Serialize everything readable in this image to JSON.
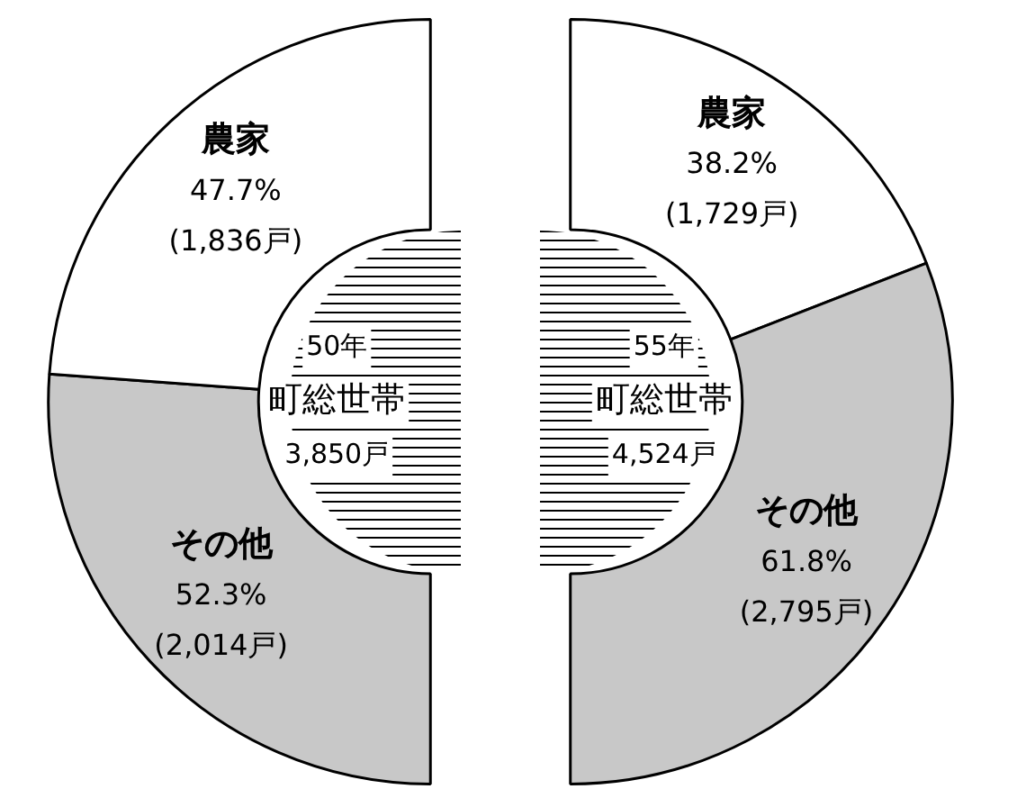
{
  "chart_data": [
    {
      "type": "donut",
      "title": "50年",
      "subtitle": "町総世帯",
      "annotations": [
        "3,850戸"
      ],
      "categories": [
        "その他",
        "農家"
      ],
      "values": [
        52.3,
        47.7
      ],
      "colors": [
        "#c8c8c8",
        "#ffffff"
      ],
      "value_labels": [
        "52.3% (2,014戸)",
        "47.7% (1,836戸)"
      ],
      "legend": false
    },
    {
      "type": "donut",
      "title": "55年",
      "subtitle": "町総世帯",
      "annotations": [
        "4,524戸"
      ],
      "categories": [
        "農家",
        "その他"
      ],
      "values": [
        38.2,
        61.8
      ],
      "colors": [
        "#ffffff",
        "#c8c8c8"
      ],
      "value_labels": [
        "38.2% (1,729戸)",
        "61.8% (2,795戸)"
      ],
      "legend": false
    }
  ]
}
